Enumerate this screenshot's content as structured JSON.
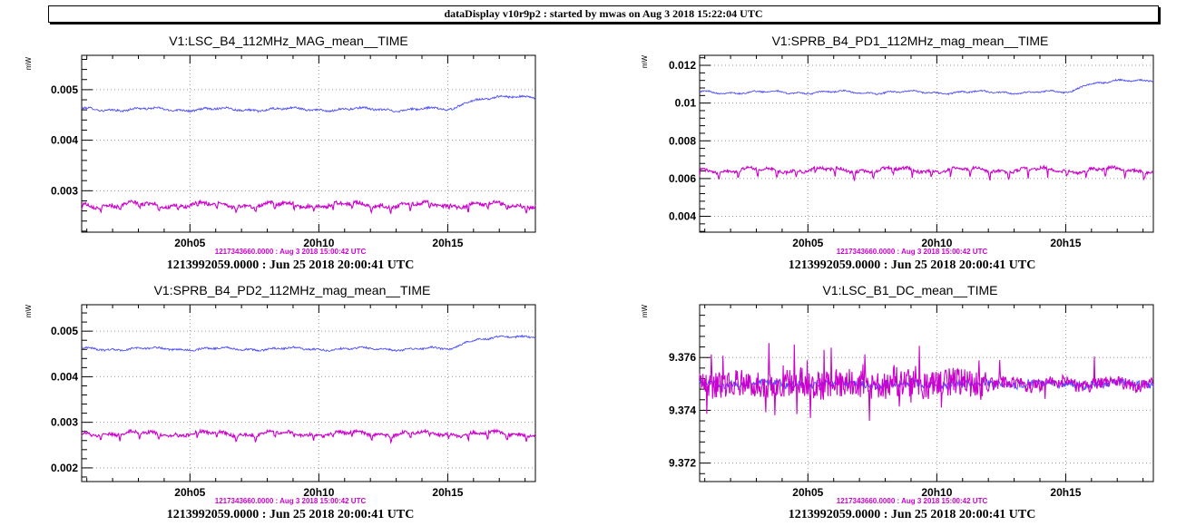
{
  "window": {
    "title": "dataDisplay v10r9p2 : started by mwas on Aug  3 2018 15:22:04 UTC"
  },
  "colors": {
    "reference_trace": "#4d4dff",
    "current_trace": "#cc00cc",
    "grid": "#999999"
  },
  "chart_data": [
    {
      "type": "line",
      "title": "V1:LSC_B4_112MHz_MAG_mean__TIME",
      "ylabel": "mW",
      "xlim": [
        0.8,
        18.4
      ],
      "ylim": [
        0.00218,
        0.00568
      ],
      "yticks": [
        0.003,
        0.004,
        0.005
      ],
      "ytick_labels": [
        "0.003",
        "0.004",
        "0.005"
      ],
      "xticks": [
        5,
        10,
        15
      ],
      "xtick_labels": [
        "20h05",
        "20h10",
        "20h15"
      ],
      "grid": true,
      "secondary_note": "1217343660.0000 : Aug  3 2018 15:00:42 UTC",
      "footer": "1213992059.0000 : Jun 25 2018 20:00:41 UTC",
      "series": [
        {
          "color": "#4d4dff",
          "base": 0.00461,
          "noise": 2e-05,
          "wave": 2.5e-05,
          "step_at": 15.2,
          "step_to": 0.00488,
          "step_end": 18.4
        },
        {
          "color": "#cc00cc",
          "base": 0.00272,
          "noise": 3.5e-05,
          "wave": 4e-05,
          "dip_every": 0.75,
          "dip_depth": 0.00012
        }
      ]
    },
    {
      "type": "line",
      "title": "V1:SPRB_B4_PD1_112MHz_mag_mean__TIME",
      "ylabel": "mW",
      "xlim": [
        0.8,
        18.4
      ],
      "ylim": [
        0.00316,
        0.01253
      ],
      "yticks": [
        0.004,
        0.006,
        0.008,
        0.01,
        0.012
      ],
      "ytick_labels": [
        "0.004",
        "0.006",
        "0.008",
        "0.01",
        "0.012"
      ],
      "xticks": [
        5,
        10,
        15
      ],
      "xtick_labels": [
        "20h05",
        "20h10",
        "20h15"
      ],
      "grid": true,
      "secondary_note": "1217343660.0000 : Aug  3 2018 15:00:42 UTC",
      "footer": "1213992059.0000 : Jun 25 2018 20:00:41 UTC",
      "series": [
        {
          "color": "#4d4dff",
          "base": 0.01057,
          "noise": 4e-05,
          "wave": 6e-05,
          "step_at": 15.2,
          "step_to": 0.01125,
          "step_end": 18.4
        },
        {
          "color": "#cc00cc",
          "base": 0.00645,
          "noise": 8e-05,
          "wave": 0.0001,
          "dip_every": 0.75,
          "dip_depth": 0.0004
        }
      ]
    },
    {
      "type": "line",
      "title": "V1:SPRB_B4_PD2_112MHz_mag_mean__TIME",
      "ylabel": "mW",
      "xlim": [
        0.8,
        18.4
      ],
      "ylim": [
        0.0017,
        0.00558
      ],
      "yticks": [
        0.002,
        0.003,
        0.004,
        0.005
      ],
      "ytick_labels": [
        "0.002",
        "0.003",
        "0.004",
        "0.005"
      ],
      "xticks": [
        5,
        10,
        15
      ],
      "xtick_labels": [
        "20h05",
        "20h10",
        "20h15"
      ],
      "grid": true,
      "secondary_note": "1217343660.0000 : Aug  3 2018 15:00:42 UTC",
      "footer": "1213992059.0000 : Jun 25 2018 20:00:41 UTC",
      "series": [
        {
          "color": "#4d4dff",
          "base": 0.00461,
          "noise": 2e-05,
          "wave": 2.5e-05,
          "step_at": 15.2,
          "step_to": 0.0049,
          "step_end": 18.4
        },
        {
          "color": "#cc00cc",
          "base": 0.00275,
          "noise": 3.5e-05,
          "wave": 4e-05,
          "dip_every": 0.75,
          "dip_depth": 0.00012
        }
      ]
    },
    {
      "type": "line",
      "title": "V1:LSC_B1_DC_mean__TIME",
      "ylabel": "mW",
      "xlim": [
        0.8,
        18.4
      ],
      "ylim": [
        9.3713,
        9.378
      ],
      "yticks": [
        9.372,
        9.374,
        9.376
      ],
      "ytick_labels": [
        "9.372",
        "9.374",
        "9.376"
      ],
      "xticks": [
        5,
        10,
        15
      ],
      "xtick_labels": [
        "20h05",
        "20h10",
        "20h15"
      ],
      "grid": true,
      "secondary_note": "1217343660.0000 : Aug  3 2018 15:00:42 UTC",
      "footer": "1213992059.0000 : Jun 25 2018 20:00:41 UTC",
      "series": [
        {
          "color": "#4d4dff",
          "base": 9.375,
          "noise": 0.00015,
          "wave": 5e-05
        },
        {
          "color": "#cc00cc",
          "base": 9.375,
          "noise": 0.00055,
          "wave": 0.0001,
          "spike_prob": 0.05,
          "spike_size": 0.0012,
          "decay_at": 12,
          "decay_factor": 0.45
        }
      ]
    }
  ]
}
